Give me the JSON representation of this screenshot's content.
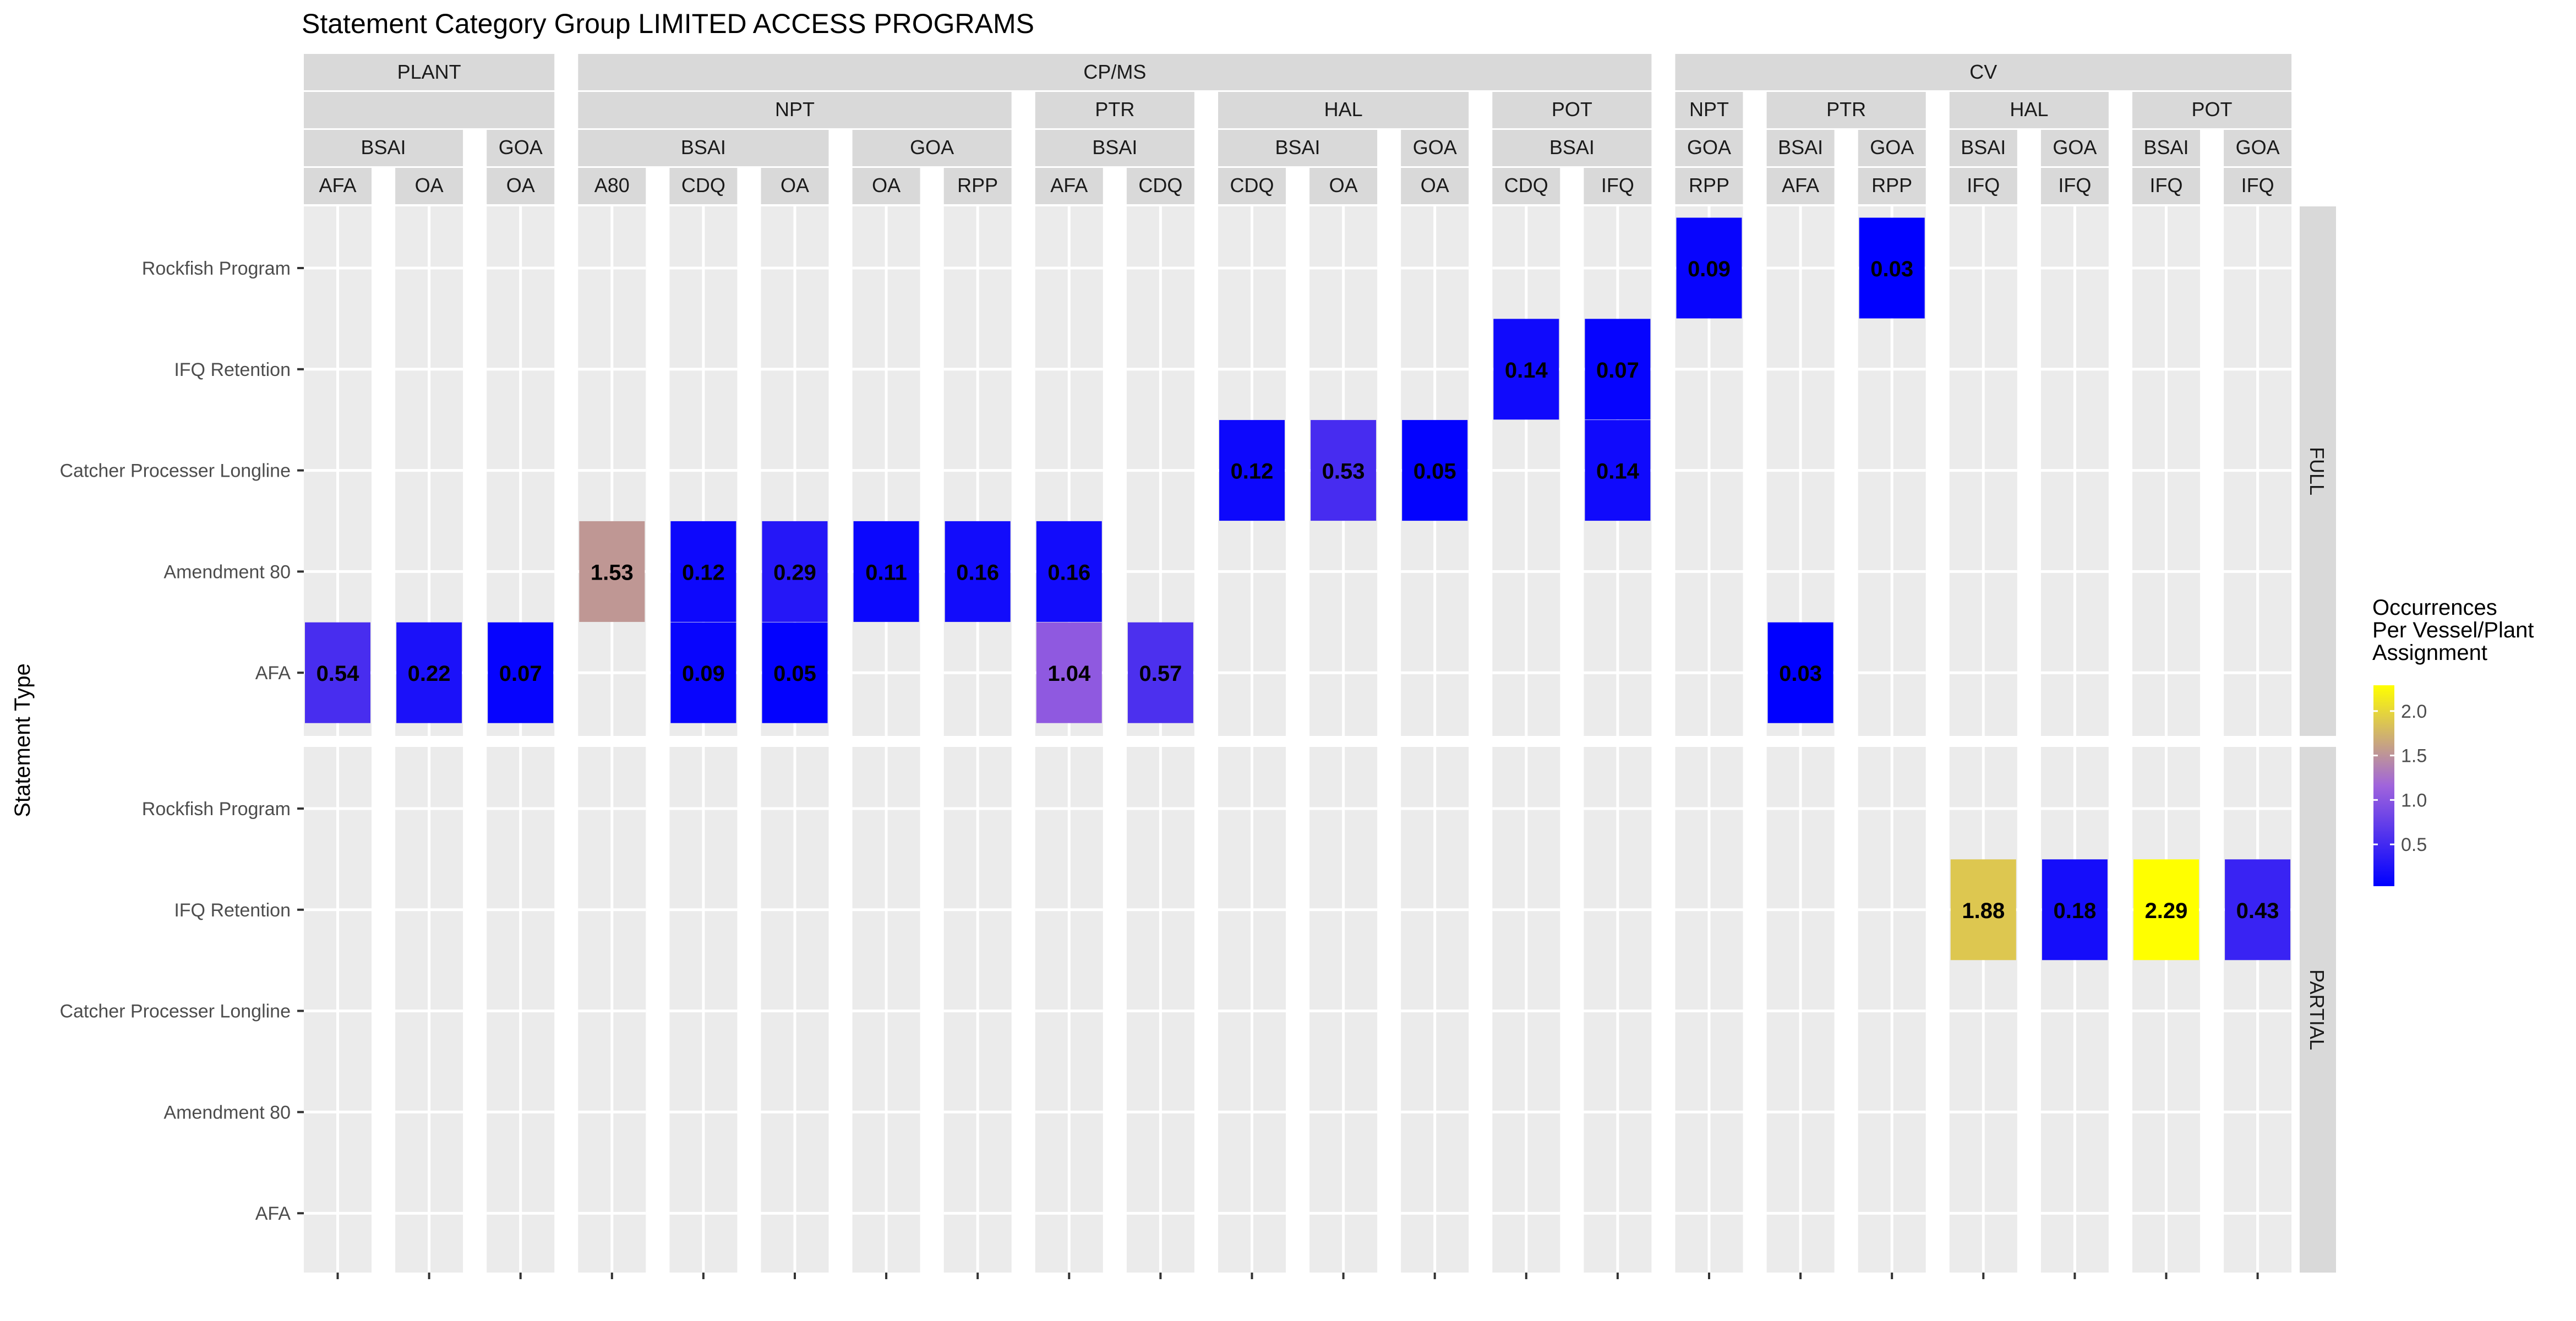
{
  "chart_data": {
    "type": "heatmap",
    "title": "Statement Category Group LIMITED ACCESS PROGRAMS",
    "ylabel": "Statement Type",
    "y_categories": [
      "Rockfish Program",
      "IFQ Retention",
      "Catcher Processer Longline",
      "Amendment 80",
      "AFA"
    ],
    "row_facets": [
      "FULL",
      "PARTIAL"
    ],
    "columns": [
      {
        "group": "PLANT",
        "sub": "",
        "region": "BSAI",
        "prog": "AFA"
      },
      {
        "group": "PLANT",
        "sub": "",
        "region": "BSAI",
        "prog": "OA"
      },
      {
        "group": "PLANT",
        "sub": "",
        "region": "GOA",
        "prog": "OA"
      },
      {
        "group": "CP/MS",
        "sub": "NPT",
        "region": "BSAI",
        "prog": "A80"
      },
      {
        "group": "CP/MS",
        "sub": "NPT",
        "region": "BSAI",
        "prog": "CDQ"
      },
      {
        "group": "CP/MS",
        "sub": "NPT",
        "region": "BSAI",
        "prog": "OA"
      },
      {
        "group": "CP/MS",
        "sub": "NPT",
        "region": "GOA",
        "prog": "OA"
      },
      {
        "group": "CP/MS",
        "sub": "NPT",
        "region": "GOA",
        "prog": "RPP"
      },
      {
        "group": "CP/MS",
        "sub": "PTR",
        "region": "BSAI",
        "prog": "AFA"
      },
      {
        "group": "CP/MS",
        "sub": "PTR",
        "region": "BSAI",
        "prog": "CDQ"
      },
      {
        "group": "CP/MS",
        "sub": "HAL",
        "region": "BSAI",
        "prog": "CDQ"
      },
      {
        "group": "CP/MS",
        "sub": "HAL",
        "region": "BSAI",
        "prog": "OA"
      },
      {
        "group": "CP/MS",
        "sub": "HAL",
        "region": "GOA",
        "prog": "OA"
      },
      {
        "group": "CP/MS",
        "sub": "POT",
        "region": "BSAI",
        "prog": "CDQ"
      },
      {
        "group": "CP/MS",
        "sub": "POT",
        "region": "BSAI",
        "prog": "IFQ"
      },
      {
        "group": "CV",
        "sub": "NPT",
        "region": "GOA",
        "prog": "RPP"
      },
      {
        "group": "CV",
        "sub": "PTR",
        "region": "BSAI",
        "prog": "AFA"
      },
      {
        "group": "CV",
        "sub": "PTR",
        "region": "GOA",
        "prog": "RPP"
      },
      {
        "group": "CV",
        "sub": "HAL",
        "region": "BSAI",
        "prog": "IFQ"
      },
      {
        "group": "CV",
        "sub": "HAL",
        "region": "GOA",
        "prog": "IFQ"
      },
      {
        "group": "CV",
        "sub": "POT",
        "region": "BSAI",
        "prog": "IFQ"
      },
      {
        "group": "CV",
        "sub": "POT",
        "region": "GOA",
        "prog": "IFQ"
      }
    ],
    "cells": [
      {
        "facet": "FULL",
        "col": 0,
        "y": "AFA",
        "value": 0.54,
        "label": "0.54"
      },
      {
        "facet": "FULL",
        "col": 1,
        "y": "AFA",
        "value": 0.22,
        "label": "0.22"
      },
      {
        "facet": "FULL",
        "col": 2,
        "y": "AFA",
        "value": 0.07,
        "label": "0.07"
      },
      {
        "facet": "FULL",
        "col": 3,
        "y": "Amendment 80",
        "value": 1.53,
        "label": "1.53"
      },
      {
        "facet": "FULL",
        "col": 4,
        "y": "Amendment 80",
        "value": 0.12,
        "label": "0.12"
      },
      {
        "facet": "FULL",
        "col": 4,
        "y": "AFA",
        "value": 0.09,
        "label": "0.09"
      },
      {
        "facet": "FULL",
        "col": 5,
        "y": "Amendment 80",
        "value": 0.29,
        "label": "0.29"
      },
      {
        "facet": "FULL",
        "col": 5,
        "y": "AFA",
        "value": 0.05,
        "label": "0.05"
      },
      {
        "facet": "FULL",
        "col": 6,
        "y": "Amendment 80",
        "value": 0.11,
        "label": "0.11"
      },
      {
        "facet": "FULL",
        "col": 7,
        "y": "Amendment 80",
        "value": 0.16,
        "label": "0.16"
      },
      {
        "facet": "FULL",
        "col": 8,
        "y": "Amendment 80",
        "value": 0.16,
        "label": "0.16"
      },
      {
        "facet": "FULL",
        "col": 8,
        "y": "AFA",
        "value": 1.04,
        "label": "1.04"
      },
      {
        "facet": "FULL",
        "col": 9,
        "y": "AFA",
        "value": 0.57,
        "label": "0.57"
      },
      {
        "facet": "FULL",
        "col": 10,
        "y": "Catcher Processer Longline",
        "value": 0.12,
        "label": "0.12"
      },
      {
        "facet": "FULL",
        "col": 11,
        "y": "Catcher Processer Longline",
        "value": 0.53,
        "label": "0.53"
      },
      {
        "facet": "FULL",
        "col": 12,
        "y": "Catcher Processer Longline",
        "value": 0.05,
        "label": "0.05"
      },
      {
        "facet": "FULL",
        "col": 13,
        "y": "IFQ Retention",
        "value": 0.14,
        "label": "0.14"
      },
      {
        "facet": "FULL",
        "col": 14,
        "y": "IFQ Retention",
        "value": 0.07,
        "label": "0.07"
      },
      {
        "facet": "FULL",
        "col": 14,
        "y": "Catcher Processer Longline",
        "value": 0.14,
        "label": "0.14"
      },
      {
        "facet": "FULL",
        "col": 15,
        "y": "Rockfish Program",
        "value": 0.09,
        "label": "0.09"
      },
      {
        "facet": "FULL",
        "col": 16,
        "y": "AFA",
        "value": 0.03,
        "label": "0.03"
      },
      {
        "facet": "FULL",
        "col": 17,
        "y": "Rockfish Program",
        "value": 0.03,
        "label": "0.03"
      },
      {
        "facet": "PARTIAL",
        "col": 18,
        "y": "IFQ Retention",
        "value": 1.88,
        "label": "1.88"
      },
      {
        "facet": "PARTIAL",
        "col": 19,
        "y": "IFQ Retention",
        "value": 0.18,
        "label": "0.18"
      },
      {
        "facet": "PARTIAL",
        "col": 20,
        "y": "IFQ Retention",
        "value": 2.29,
        "label": "2.29"
      },
      {
        "facet": "PARTIAL",
        "col": 21,
        "y": "IFQ Retention",
        "value": 0.43,
        "label": "0.43"
      }
    ],
    "legend": {
      "title_lines": [
        "Occurrences",
        "Per Vessel/Plant",
        "Assignment"
      ],
      "ticks": [
        0.5,
        1.0,
        1.5,
        2.0
      ],
      "tick_labels": [
        "0.5",
        "1.0",
        "1.5",
        "2.0"
      ],
      "range": [
        0.03,
        2.29
      ],
      "low_color": "#0000ff",
      "high_color": "#ffff00",
      "placement": "right"
    },
    "colors": {
      "panel_bg": "#ebebeb",
      "strip_bg": "#d9d9d9",
      "grid": "#ffffff"
    }
  }
}
